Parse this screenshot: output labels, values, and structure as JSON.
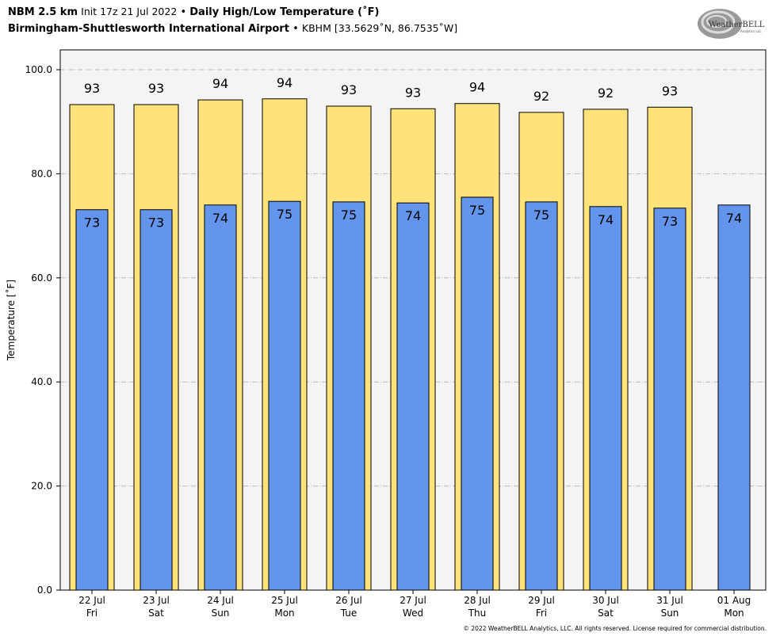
{
  "header": {
    "model": "NBM 2.5 km",
    "init": "Init 17z 21 Jul 2022",
    "sep": "•",
    "product": "Daily High/Low Temperature (˚F)",
    "station": "Birmingham-Shuttlesworth International Airport",
    "station_info": "KBHM [33.5629˚N, 86.7535˚W]"
  },
  "logo": {
    "text": "WeatherBELL",
    "sub": "Analytics LLC"
  },
  "footer": "© 2022 WeatherBELL Analytics, LLC. All rights reserved. License required for commercial distribution.",
  "chart_data": {
    "type": "bar",
    "ylabel": "Temperature [˚F]",
    "ylim": [
      0,
      104
    ],
    "yticks": [
      "0.0",
      "20.0",
      "40.0",
      "60.0",
      "80.0",
      "100.0"
    ],
    "grid": true,
    "categories": [
      [
        "22 Jul",
        "Fri"
      ],
      [
        "23 Jul",
        "Sat"
      ],
      [
        "24 Jul",
        "Sun"
      ],
      [
        "25 Jul",
        "Mon"
      ],
      [
        "26 Jul",
        "Tue"
      ],
      [
        "27 Jul",
        "Wed"
      ],
      [
        "28 Jul",
        "Thu"
      ],
      [
        "29 Jul",
        "Fri"
      ],
      [
        "30 Jul",
        "Sat"
      ],
      [
        "31 Jul",
        "Sun"
      ],
      [
        "01 Aug",
        "Mon"
      ]
    ],
    "series": [
      {
        "name": "High",
        "color": "#FFE37A",
        "values": [
          93.3,
          93.3,
          94.2,
          94.4,
          93.0,
          92.5,
          93.5,
          91.8,
          92.4,
          92.8,
          null
        ],
        "labels": [
          "93",
          "93",
          "94",
          "94",
          "93",
          "93",
          "94",
          "92",
          "92",
          "93",
          ""
        ]
      },
      {
        "name": "Low",
        "color": "#6495ED",
        "values": [
          73.1,
          73.1,
          74.0,
          74.7,
          74.6,
          74.4,
          75.5,
          74.6,
          73.7,
          73.4,
          74.0
        ],
        "labels": [
          "73",
          "73",
          "74",
          "75",
          "75",
          "74",
          "75",
          "75",
          "74",
          "73",
          "74"
        ]
      }
    ],
    "plot_bg": "#F4F4F4"
  }
}
